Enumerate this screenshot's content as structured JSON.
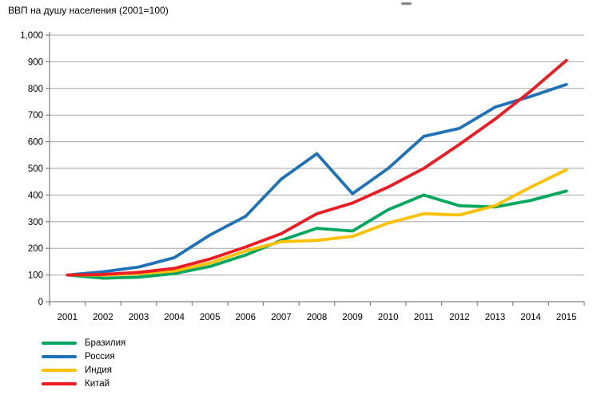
{
  "title": "ВВП на душу населения (2001=100)",
  "colors": {
    "gridline": "#a6a6a6",
    "axis": "#808080",
    "text": "#000000",
    "background": "#ffffff"
  },
  "chart_data": {
    "type": "line",
    "title": "ВВП на душу населения (2001=100)",
    "x": [
      2001,
      2002,
      2003,
      2004,
      2005,
      2006,
      2007,
      2008,
      2009,
      2010,
      2011,
      2012,
      2013,
      2014,
      2015
    ],
    "series": [
      {
        "name": "Бразилия",
        "color": "#00a75c",
        "values": [
          100,
          88,
          92,
          105,
          132,
          175,
          230,
          275,
          265,
          345,
          400,
          360,
          355,
          380,
          415
        ]
      },
      {
        "name": "Россия",
        "color": "#1f72b8",
        "values": [
          100,
          112,
          130,
          165,
          250,
          320,
          460,
          555,
          405,
          500,
          620,
          650,
          730,
          770,
          815
        ]
      },
      {
        "name": "Индия",
        "color": "#ffc000",
        "values": [
          100,
          100,
          105,
          115,
          145,
          190,
          225,
          230,
          245,
          295,
          330,
          325,
          360,
          430,
          495
        ]
      },
      {
        "name": "Китай",
        "color": "#ed1c24",
        "values": [
          100,
          102,
          110,
          125,
          160,
          205,
          255,
          330,
          370,
          430,
          500,
          590,
          685,
          790,
          905
        ]
      }
    ],
    "ylim": [
      0,
      1000
    ],
    "ytick_step": 100,
    "ytick_labels": [
      "0",
      "100",
      "200",
      "300",
      "400",
      "500",
      "600",
      "700",
      "800",
      "900",
      "1,000"
    ],
    "xtick_labels": [
      "2001",
      "2002",
      "2003",
      "2004",
      "2005",
      "2006",
      "2007",
      "2008",
      "2009",
      "2010",
      "2011",
      "2012",
      "2013",
      "2014",
      "2015"
    ],
    "grid": true,
    "legend_position": "bottom-left",
    "line_width": 3.8
  }
}
